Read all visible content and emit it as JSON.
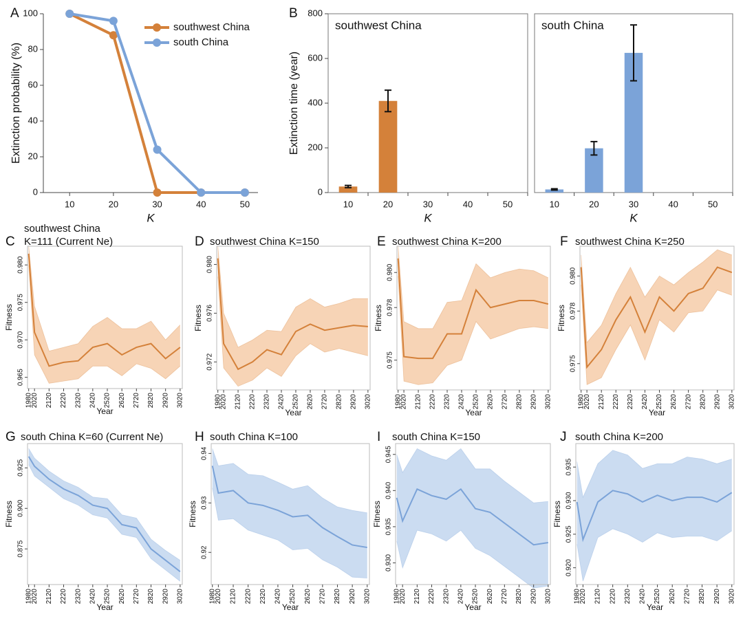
{
  "chart_data": [
    {
      "type": "line",
      "panel": "A",
      "x": [
        10,
        20,
        30,
        40,
        50
      ],
      "xlim": [
        4,
        53
      ],
      "xticks": [
        10,
        20,
        30,
        40,
        50
      ],
      "ylim": [
        0,
        100
      ],
      "yticks": [
        0,
        20,
        40,
        60,
        80,
        100
      ],
      "x_label": "K",
      "y_label": "Extinction probability (%)",
      "legend": "upper right",
      "series": [
        {
          "name": "southwest China",
          "color": "#d4813a",
          "values": [
            100,
            88,
            0,
            0,
            0
          ]
        },
        {
          "name": "south China",
          "color": "#7ba3d8",
          "values": [
            100,
            96,
            24,
            0,
            0
          ]
        }
      ]
    },
    {
      "type": "bar",
      "panel": "B",
      "title": "southwest China",
      "categories": [
        10,
        20,
        30,
        40,
        50
      ],
      "values": [
        27,
        410,
        null,
        null,
        null
      ],
      "errors": [
        5,
        48,
        null,
        null,
        null
      ],
      "color": "#d4813a",
      "ylim": [
        0,
        800
      ],
      "yticks": [
        0,
        200,
        400,
        600,
        800
      ],
      "x_label": "K",
      "y_label": "Extinction time (year)"
    },
    {
      "type": "bar",
      "title": "south China",
      "categories": [
        10,
        20,
        30,
        40,
        50
      ],
      "values": [
        14,
        198,
        625,
        null,
        null
      ],
      "errors": [
        3,
        30,
        125,
        null,
        null
      ],
      "color": "#7ba3d8",
      "ylim": [
        0,
        800
      ],
      "x_label": "K"
    },
    {
      "type": "band",
      "panel": "C",
      "title": "southwest China",
      "subtitle": "K=111 (Current Ne)",
      "color": "#d4813a",
      "fill_color": "#f6cfae",
      "x": [
        1980,
        2020,
        2120,
        2220,
        2320,
        2420,
        2520,
        2620,
        2720,
        2820,
        2920,
        3020
      ],
      "xlim": [
        1972,
        3035
      ],
      "xticks": [
        1980,
        2020,
        2120,
        2220,
        2320,
        2420,
        2520,
        2620,
        2720,
        2820,
        2920,
        3020
      ],
      "ylim": [
        0.9635,
        0.9825
      ],
      "yticks": [
        0.965,
        {
          "value": 0.97,
          "label": "0.970"
        },
        0.975,
        {
          "value": 0.98,
          "label": "0.980"
        }
      ],
      "values": [
        0.9815,
        0.971,
        0.9665,
        0.967,
        0.9672,
        0.969,
        0.9695,
        0.968,
        0.969,
        0.9695,
        0.9675,
        0.969
      ],
      "upper": [
        0.9825,
        0.9745,
        0.9685,
        0.969,
        0.9695,
        0.9718,
        0.973,
        0.9715,
        0.9715,
        0.9725,
        0.97,
        0.972
      ],
      "lower": [
        0.98,
        0.968,
        0.9642,
        0.9645,
        0.9648,
        0.9665,
        0.9665,
        0.9652,
        0.9668,
        0.9662,
        0.9648,
        0.9665
      ],
      "x_label": "Year",
      "y_label": "Fitness"
    },
    {
      "type": "band",
      "panel": "D",
      "title": "southwest China K=150",
      "color": "#d4813a",
      "fill_color": "#f6cfae",
      "x": [
        1980,
        2020,
        2120,
        2220,
        2320,
        2420,
        2520,
        2620,
        2720,
        2820,
        2920,
        3020
      ],
      "xlim": [
        1972,
        3035
      ],
      "xticks": [
        1980,
        2020,
        2120,
        2220,
        2320,
        2420,
        2520,
        2620,
        2720,
        2820,
        2920,
        3020
      ],
      "ylim": [
        0.9697,
        0.9815
      ],
      "yticks": [
        0.972,
        0.976,
        {
          "value": 0.98,
          "label": "0.980"
        }
      ],
      "values": [
        0.9805,
        0.9735,
        0.9714,
        0.972,
        0.973,
        0.9726,
        0.9745,
        0.9751,
        0.9746,
        0.9748,
        0.975,
        0.9749
      ],
      "upper": [
        0.9815,
        0.976,
        0.9732,
        0.9738,
        0.9746,
        0.9745,
        0.9765,
        0.9772,
        0.9765,
        0.9768,
        0.9772,
        0.9772
      ],
      "lower": [
        0.979,
        0.9715,
        0.97,
        0.9705,
        0.9715,
        0.9708,
        0.9725,
        0.9735,
        0.9728,
        0.9731,
        0.9728,
        0.9725
      ],
      "x_label": "Year",
      "y_label": "Fitness"
    },
    {
      "type": "band",
      "panel": "E",
      "title": "southwest China K=200",
      "color": "#d4813a",
      "fill_color": "#f6cfae",
      "x": [
        1980,
        2020,
        2120,
        2220,
        2320,
        2420,
        2520,
        2620,
        2720,
        2820,
        2920,
        3020
      ],
      "xlim": [
        1972,
        3035
      ],
      "xticks": [
        1980,
        2020,
        2120,
        2220,
        2320,
        2420,
        2520,
        2620,
        2720,
        2820,
        2920,
        3020
      ],
      "ylim": [
        0.9733,
        0.9815
      ],
      "yticks": [
        0.975,
        0.978,
        {
          "value": 0.98,
          "label": "0.980"
        }
      ],
      "values": [
        0.9808,
        0.9752,
        0.9751,
        0.9751,
        0.9765,
        0.9765,
        0.979,
        0.978,
        0.9782,
        0.9784,
        0.9784,
        0.9782
      ],
      "upper": [
        0.9815,
        0.9772,
        0.9768,
        0.9768,
        0.9783,
        0.9784,
        0.9805,
        0.9797,
        0.98,
        0.9802,
        0.9801,
        0.9797
      ],
      "lower": [
        0.9798,
        0.9738,
        0.9736,
        0.9737,
        0.9747,
        0.975,
        0.9772,
        0.9762,
        0.9765,
        0.9768,
        0.9769,
        0.9768
      ],
      "x_label": "Year",
      "y_label": "Fitness"
    },
    {
      "type": "band",
      "panel": "F",
      "title": "southwest China K=250",
      "color": "#d4813a",
      "fill_color": "#f6cfae",
      "x": [
        1980,
        2020,
        2120,
        2220,
        2320,
        2420,
        2520,
        2620,
        2720,
        2820,
        2920,
        3020
      ],
      "xlim": [
        1972,
        3035
      ],
      "xticks": [
        1980,
        2020,
        2120,
        2220,
        2320,
        2420,
        2520,
        2620,
        2720,
        2820,
        2920,
        3020
      ],
      "ylim": [
        0.9735,
        0.9817
      ],
      "yticks": [
        0.975,
        0.978,
        {
          "value": 0.98,
          "label": "0.980"
        }
      ],
      "values": [
        0.9805,
        0.9748,
        0.9758,
        0.9775,
        0.9788,
        0.9768,
        0.9788,
        0.978,
        0.979,
        0.9793,
        0.9805,
        0.9802
      ],
      "upper": [
        0.9812,
        0.9762,
        0.9772,
        0.979,
        0.9805,
        0.9788,
        0.98,
        0.9795,
        0.9802,
        0.9808,
        0.9815,
        0.9812
      ],
      "lower": [
        0.9795,
        0.9738,
        0.9742,
        0.9758,
        0.9772,
        0.9752,
        0.9775,
        0.9768,
        0.9779,
        0.978,
        0.9792,
        0.9789
      ],
      "x_label": "Year",
      "y_label": "Fitness"
    },
    {
      "type": "band",
      "panel": "G",
      "title": "south China K=60 (Current Ne)",
      "color": "#7ba3d8",
      "fill_color": "#c5d8f0",
      "x": [
        1980,
        2020,
        2120,
        2220,
        2320,
        2420,
        2520,
        2620,
        2720,
        2820,
        2920,
        3020
      ],
      "xlim": [
        1972,
        3035
      ],
      "xticks": [
        1980,
        2020,
        2120,
        2220,
        2320,
        2420,
        2520,
        2620,
        2720,
        2820,
        2920,
        3020
      ],
      "ylim": [
        0.853,
        0.94
      ],
      "yticks": [
        0.875,
        {
          "value": 0.9,
          "label": "0.900"
        },
        0.925
      ],
      "values": [
        0.932,
        0.926,
        0.918,
        0.912,
        0.908,
        0.902,
        0.9,
        0.89,
        0.888,
        0.875,
        0.868,
        0.861
      ],
      "upper": [
        0.937,
        0.931,
        0.923,
        0.917,
        0.913,
        0.907,
        0.906,
        0.896,
        0.894,
        0.881,
        0.874,
        0.868
      ],
      "lower": [
        0.927,
        0.92,
        0.913,
        0.906,
        0.902,
        0.896,
        0.894,
        0.884,
        0.882,
        0.869,
        0.862,
        0.855
      ],
      "x_label": "Year",
      "y_label": "Fitness"
    },
    {
      "type": "band",
      "panel": "H",
      "title": "south China K=100",
      "color": "#7ba3d8",
      "fill_color": "#c5d8f0",
      "x": [
        1980,
        2020,
        2120,
        2220,
        2320,
        2420,
        2520,
        2620,
        2720,
        2820,
        2920,
        3020
      ],
      "xlim": [
        1972,
        3035
      ],
      "xticks": [
        1980,
        2020,
        2120,
        2220,
        2320,
        2420,
        2520,
        2620,
        2720,
        2820,
        2920,
        3020
      ],
      "ylim": [
        0.9135,
        0.942
      ],
      "yticks": [
        0.92,
        0.93,
        0.94
      ],
      "values": [
        0.9375,
        0.932,
        0.9325,
        0.93,
        0.9295,
        0.9285,
        0.9272,
        0.9275,
        0.925,
        0.9232,
        0.9215,
        0.921
      ],
      "upper": [
        0.941,
        0.9375,
        0.938,
        0.9358,
        0.9355,
        0.9342,
        0.9328,
        0.9335,
        0.931,
        0.9292,
        0.9285,
        0.928
      ],
      "lower": [
        0.933,
        0.9265,
        0.9268,
        0.9245,
        0.9235,
        0.9225,
        0.9205,
        0.9208,
        0.9185,
        0.917,
        0.915,
        0.9148
      ],
      "x_label": "Year",
      "y_label": "Fitness"
    },
    {
      "type": "band",
      "panel": "I",
      "title": "south China K=150",
      "color": "#7ba3d8",
      "fill_color": "#c5d8f0",
      "x": [
        1980,
        2020,
        2120,
        2220,
        2320,
        2420,
        2520,
        2620,
        2720,
        2820,
        2920,
        3020
      ],
      "xlim": [
        1972,
        3035
      ],
      "xticks": [
        1980,
        2020,
        2120,
        2220,
        2320,
        2420,
        2520,
        2620,
        2720,
        2820,
        2920,
        3020
      ],
      "ylim": [
        0.927,
        0.9465
      ],
      "yticks": [
        {
          "value": 0.93,
          "label": "0.930"
        },
        0.935,
        {
          "value": 0.94,
          "label": "0.940"
        },
        0.945
      ],
      "values": [
        0.939,
        0.9358,
        0.9402,
        0.9393,
        0.9388,
        0.9402,
        0.9375,
        0.937,
        0.9355,
        0.934,
        0.9325,
        0.9328
      ],
      "upper": [
        0.945,
        0.9425,
        0.9458,
        0.9448,
        0.9442,
        0.9458,
        0.943,
        0.943,
        0.9413,
        0.9398,
        0.9383,
        0.9385
      ],
      "lower": [
        0.933,
        0.9293,
        0.9345,
        0.934,
        0.933,
        0.9345,
        0.932,
        0.931,
        0.9295,
        0.928,
        0.9265,
        0.9268
      ],
      "x_label": "Year",
      "y_label": "Fitness"
    },
    {
      "type": "band",
      "panel": "J",
      "title": "south China K=200",
      "color": "#7ba3d8",
      "fill_color": "#c5d8f0",
      "x": [
        1980,
        2020,
        2120,
        2220,
        2320,
        2420,
        2520,
        2620,
        2720,
        2820,
        2920,
        3020
      ],
      "xlim": [
        1972,
        3035
      ],
      "xticks": [
        1980,
        2020,
        2120,
        2220,
        2320,
        2420,
        2520,
        2620,
        2720,
        2820,
        2920,
        3020
      ],
      "ylim": [
        0.9175,
        0.9385
      ],
      "yticks": [
        {
          "value": 0.92,
          "label": "0.920"
        },
        0.925,
        {
          "value": 0.93,
          "label": "0.930"
        },
        0.935
      ],
      "values": [
        0.9298,
        0.9242,
        0.9298,
        0.9315,
        0.931,
        0.9298,
        0.9308,
        0.93,
        0.9305,
        0.9305,
        0.9298,
        0.9312
      ],
      "upper": [
        0.9358,
        0.9305,
        0.9355,
        0.9375,
        0.9368,
        0.9348,
        0.9355,
        0.9355,
        0.9365,
        0.9362,
        0.9355,
        0.9362
      ],
      "lower": [
        0.9235,
        0.918,
        0.9245,
        0.9258,
        0.925,
        0.9238,
        0.9252,
        0.9245,
        0.9247,
        0.9247,
        0.924,
        0.9255
      ],
      "x_label": "Year",
      "y_label": "Fitness"
    }
  ]
}
